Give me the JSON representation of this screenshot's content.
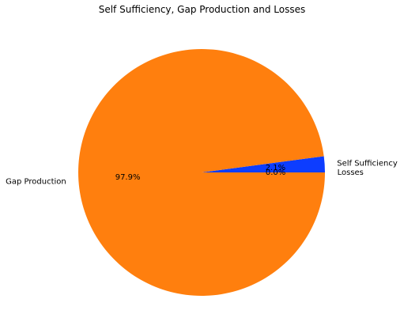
{
  "chart_data": {
    "type": "pie",
    "title": "Self Sufficiency, Gap Production and Losses",
    "slices": [
      {
        "label": "Self Sufficiency",
        "value": 2.1,
        "pct_label": "2.1%",
        "color": "#0d3dff"
      },
      {
        "label": "Gap Production",
        "value": 97.9,
        "pct_label": "97.9%",
        "color": "#ff7f0e"
      },
      {
        "label": "Losses",
        "value": 0.0,
        "pct_label": "0.0%",
        "color": "#2ca02c"
      }
    ],
    "start_angle": 0,
    "direction": "counterclockwise"
  }
}
